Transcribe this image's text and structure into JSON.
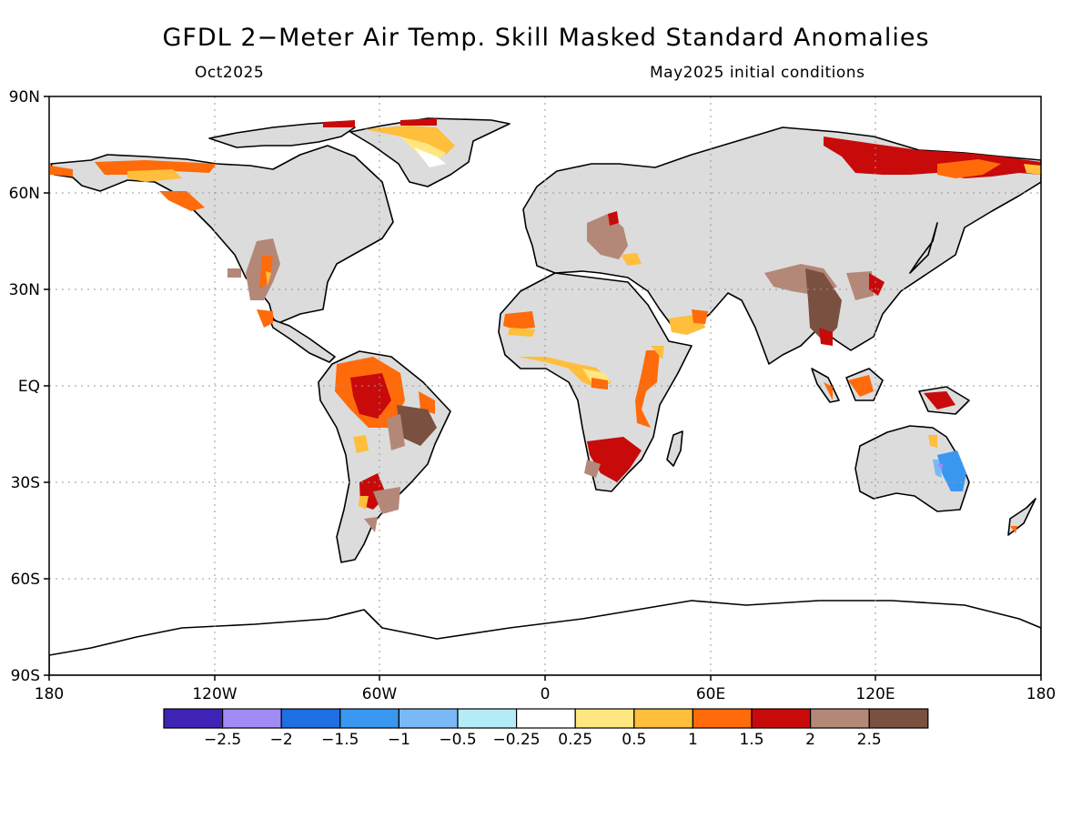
{
  "header": {
    "title": "GFDL 2−Meter Air Temp. Skill Masked Standard Anomalies",
    "target_month": "Oct2025",
    "init_label": "May2025 initial conditions"
  },
  "axes": {
    "lat_labels": [
      "90N",
      "60N",
      "30N",
      "EQ",
      "30S",
      "60S",
      "90S"
    ],
    "lon_labels": [
      "180",
      "120W",
      "60W",
      "0",
      "60E",
      "120E",
      "180"
    ]
  },
  "legend": {
    "colors": [
      "#3f23b5",
      "#a08cf4",
      "#1f6fe3",
      "#3a97f0",
      "#7ab9f5",
      "#b3ecf7",
      "#ffffff",
      "#ffe680",
      "#ffbe3c",
      "#ff6a0a",
      "#c80a0a",
      "#b48878",
      "#7a5040"
    ],
    "labels": [
      "−2.5",
      "−2",
      "−1.5",
      "−1",
      "−0.5",
      "−0.25",
      "0.25",
      "0.5",
      "1",
      "1.5",
      "2",
      "2.5"
    ]
  },
  "chart_data": {
    "type": "heatmap",
    "title": "GFDL 2-Meter Air Temp. Skill Masked Standard Anomalies",
    "lat_range": [
      -90,
      90
    ],
    "lon_range": [
      -180,
      180
    ],
    "masked_color": "#dcdcdc",
    "regions": [
      {
        "name": "Eastern Siberia",
        "level": 2
      },
      {
        "name": "Northern Russia coast",
        "level": 1.5
      },
      {
        "name": "Alaska north slope",
        "level": 1
      },
      {
        "name": "NW Canada coast",
        "level": 1.5
      },
      {
        "name": "Greenland",
        "level": 0.5
      },
      {
        "name": "US Southwest",
        "level": 2.5
      },
      {
        "name": "Mexico",
        "level": 1.5
      },
      {
        "name": "Amazon",
        "level": 2
      },
      {
        "name": "Northeast Brazil",
        "level": 2.5
      },
      {
        "name": "Southern South America",
        "level": 2
      },
      {
        "name": "West Africa Sahel",
        "level": 1.5
      },
      {
        "name": "Gulf of Guinea",
        "level": 0.5
      },
      {
        "name": "East Africa",
        "level": 1.5
      },
      {
        "name": "Southern Africa",
        "level": 2
      },
      {
        "name": "Eastern Europe / Black Sea",
        "level": 2.5
      },
      {
        "name": "Arabian Peninsula south",
        "level": 0.5
      },
      {
        "name": "Tibet / Himalaya",
        "level": 2.5
      },
      {
        "name": "Southeast Asia",
        "level": 2.5
      },
      {
        "name": "Borneo",
        "level": 1.5
      },
      {
        "name": "New Guinea",
        "level": 2
      },
      {
        "name": "Eastern Australia",
        "level": -1.5
      }
    ]
  }
}
